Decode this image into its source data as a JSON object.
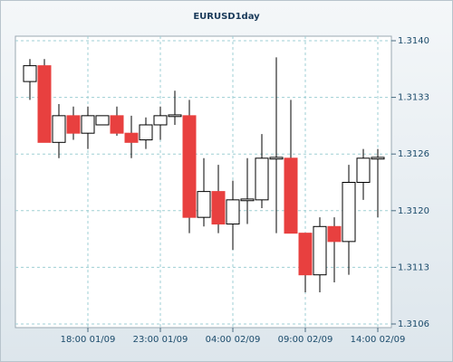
{
  "chart_data": {
    "type": "candlestick",
    "title": "EURUSD1day",
    "categories": [
      null,
      null,
      null,
      null,
      "18:00 01/09",
      null,
      null,
      null,
      null,
      "23:00 01/09",
      null,
      null,
      null,
      null,
      "04:00 02/09",
      null,
      null,
      null,
      null,
      "09:00 02/09",
      null,
      null,
      null,
      null,
      "14:00 02/09"
    ],
    "open": [
      1.31351,
      1.3137,
      1.31278,
      1.3131,
      1.31289,
      1.31299,
      1.3131,
      1.31289,
      1.31281,
      1.31299,
      1.31309,
      1.3131,
      1.31188,
      1.31219,
      1.3118,
      1.31208,
      1.31209,
      1.31258,
      1.31259,
      1.31169,
      1.31119,
      1.31177,
      1.31159,
      1.3123,
      1.31258
    ],
    "high": [
      1.31378,
      1.31378,
      1.31324,
      1.31321,
      1.31321,
      1.3131,
      1.31321,
      1.3131,
      1.31308,
      1.31321,
      1.3134,
      1.31329,
      1.31259,
      1.31251,
      1.31232,
      1.31259,
      1.31288,
      1.3138,
      1.31329,
      1.31169,
      1.31188,
      1.31188,
      1.31251,
      1.3127,
      1.3127
    ],
    "low": [
      1.31329,
      1.31278,
      1.31259,
      1.31281,
      1.3127,
      1.31299,
      1.31286,
      1.31259,
      1.3127,
      1.31281,
      1.31299,
      1.31169,
      1.31177,
      1.31169,
      1.31149,
      1.3118,
      1.31199,
      1.31169,
      1.31169,
      1.31098,
      1.31098,
      1.3111,
      1.31119,
      1.31209,
      1.31188
    ],
    "close": [
      1.3137,
      1.31278,
      1.3131,
      1.31289,
      1.3131,
      1.3131,
      1.31289,
      1.31278,
      1.31299,
      1.3131,
      1.31311,
      1.31188,
      1.31219,
      1.3118,
      1.31209,
      1.3121,
      1.31259,
      1.3126,
      1.31169,
      1.31119,
      1.31177,
      1.31159,
      1.3123,
      1.31259,
      1.3126
    ],
    "up_color": "#ffffff",
    "down_color": "#e8403f",
    "ylim": [
      1.3106,
      1.314
    ],
    "yticks": [
      {
        "value": 1.3106,
        "label": "1.3106"
      },
      {
        "value": 1.31128,
        "label": "1.3113"
      },
      {
        "value": 1.31196,
        "label": "1.3120"
      },
      {
        "value": 1.31264,
        "label": "1.3126"
      },
      {
        "value": 1.31332,
        "label": "1.3133"
      },
      {
        "value": 1.314,
        "label": "1.3140"
      }
    ],
    "grid": true
  }
}
